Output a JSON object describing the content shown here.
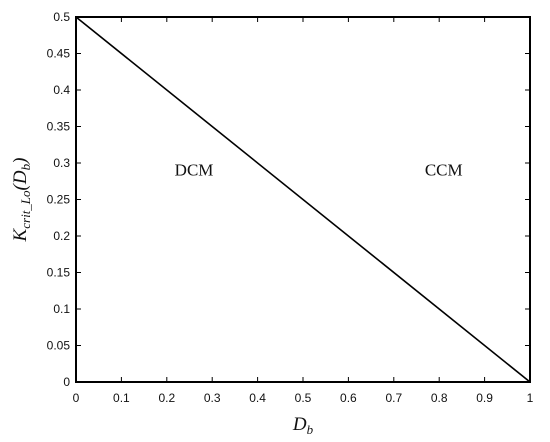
{
  "chart_data": {
    "type": "line",
    "title": "",
    "xlabel": {
      "main": "D",
      "sub": "b"
    },
    "ylabel": {
      "main": "K",
      "sub": "crit_Lo",
      "paren_open": "(",
      "arg_main": "D",
      "arg_sub": "b",
      "paren_close": ")"
    },
    "xlim": [
      0,
      1
    ],
    "ylim": [
      0,
      0.5
    ],
    "grid": false,
    "xticks": [
      0,
      0.1,
      0.2,
      0.3,
      0.4,
      0.5,
      0.6,
      0.7,
      0.8,
      0.9,
      1
    ],
    "xtick_labels": [
      "0",
      "0.1",
      "0.2",
      "0.3",
      "0.4",
      "0.5",
      "0.6",
      "0.7",
      "0.8",
      "0.9",
      "1"
    ],
    "yticks": [
      0,
      0.05,
      0.1,
      0.15,
      0.2,
      0.25,
      0.3,
      0.35,
      0.4,
      0.45,
      0.5
    ],
    "ytick_labels": [
      "0",
      "0.05",
      "0.1",
      "0.15",
      "0.2",
      "0.25",
      "0.3",
      "0.35",
      "0.4",
      "0.45",
      "0.5"
    ],
    "series": [
      {
        "x": [
          0,
          1
        ],
        "y": [
          0.5,
          0
        ],
        "color": "#000000"
      }
    ],
    "annotations": [
      {
        "text": "DCM",
        "x": 0.26,
        "y": 0.25
      },
      {
        "text": "CCM",
        "x": 0.81,
        "y": 0.25
      }
    ]
  }
}
